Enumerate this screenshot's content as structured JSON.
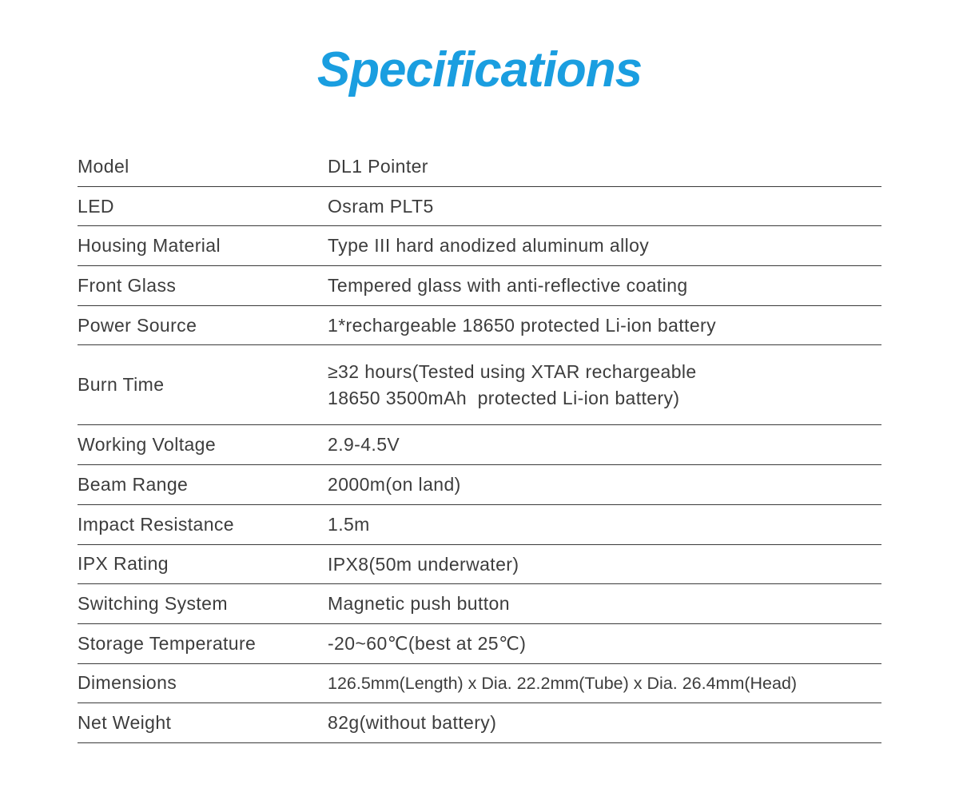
{
  "page": {
    "title": "Specifications"
  },
  "colors": {
    "title_blue": "#1a9ee0",
    "text_gray": "#3d3d3d",
    "line_gray": "#3a3a3a",
    "background": "#ffffff"
  },
  "table": {
    "rows": [
      {
        "label": "Model",
        "value": "DL1 Pointer"
      },
      {
        "label": "LED",
        "value": "Osram PLT5"
      },
      {
        "label": "Housing Material",
        "value": "Type III hard anodized aluminum alloy"
      },
      {
        "label": "Front Glass",
        "value": "Tempered glass with anti-reflective coating"
      },
      {
        "label": "Power Source",
        "value": "1*rechargeable 18650 protected Li-ion battery"
      },
      {
        "label": "Burn Time",
        "value": "≥32 hours(Tested using XTAR rechargeable\n18650 3500mAh  protected Li-ion battery)"
      },
      {
        "label": "Working Voltage",
        "value": "2.9-4.5V"
      },
      {
        "label": "Beam Range",
        "value": "2000m(on land)"
      },
      {
        "label": "Impact Resistance",
        "value": "1.5m"
      },
      {
        "label": "IPX Rating",
        "value": "IPX8(50m underwater)"
      },
      {
        "label": "Switching System",
        "value": "Magnetic push button"
      },
      {
        "label": "Storage Temperature",
        "value": "-20~60℃(best at 25℃)"
      },
      {
        "label": "Dimensions",
        "value": "126.5mm(Length) x Dia. 22.2mm(Tube) x Dia. 26.4mm(Head)"
      },
      {
        "label": "Net Weight",
        "value": "82g(without battery)"
      }
    ]
  }
}
